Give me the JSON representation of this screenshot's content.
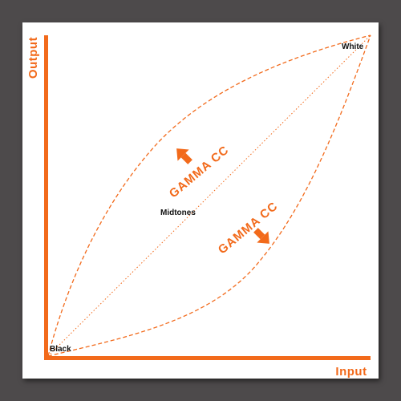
{
  "axes": {
    "x_label": "Input",
    "y_label": "Output"
  },
  "points": {
    "black": "Black",
    "white": "White",
    "midtones": "Midtones"
  },
  "curves": {
    "upper_label": "GAMMA CC",
    "lower_label": "GAMMA CC"
  },
  "colors": {
    "accent": "#f26a1b",
    "background": "#4d4a4b",
    "panel": "#ffffff",
    "text": "#111111"
  }
}
